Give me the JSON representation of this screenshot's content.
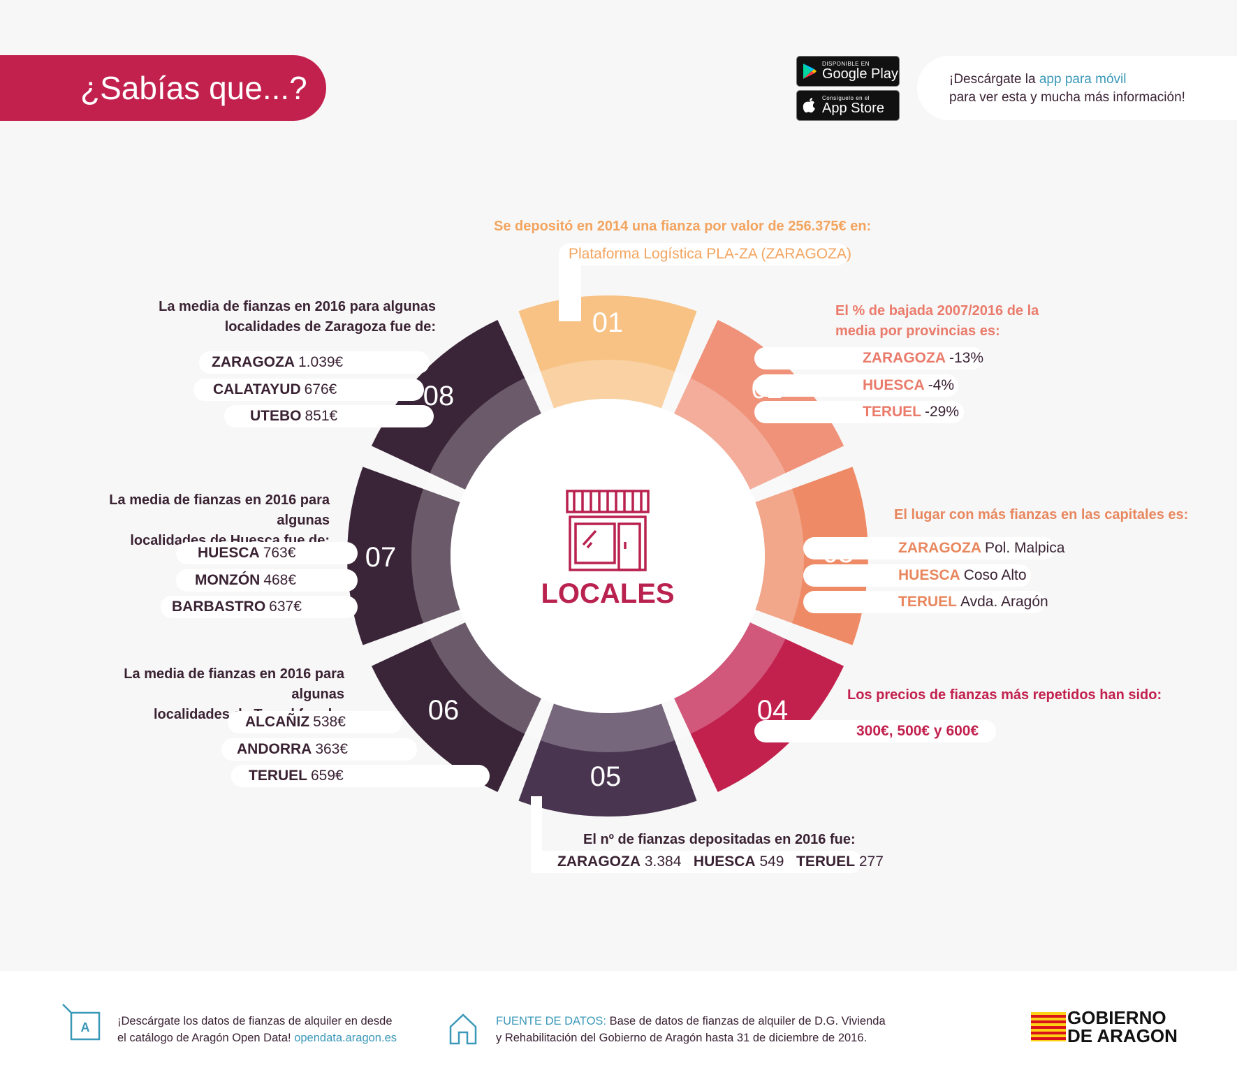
{
  "header": {
    "title": "¿Sabías que...?"
  },
  "stores": {
    "google": {
      "small": "DISPONIBLE EN",
      "name": "Google Play"
    },
    "apple": {
      "small": "Consíguelo en el",
      "name": "App Store"
    }
  },
  "app_promo": {
    "prefix": "¡Descárgate la ",
    "link": "app para móvil",
    "line2": "para ver esta y mucha más información!"
  },
  "center": {
    "label": "LOCALES",
    "icon": "shop-icon"
  },
  "colors": {
    "s01": "#f7c283",
    "s02": "#ef9279",
    "s03": "#ee8a65",
    "s04": "#c2214e",
    "s05": "#4a3551",
    "s06": "#3a2438",
    "s07": "#3a2438",
    "s08": "#3a2438",
    "brand": "#c2214e",
    "link": "#3a98b8"
  },
  "segments": {
    "s01": {
      "num": "01",
      "head": "Se depositó en 2014 una fianza por valor de 256.375€ en:",
      "value": "Plataforma Logística PLA-ZA (ZARAGOZA)"
    },
    "s02": {
      "num": "02",
      "head1": "El % de bajada 2007/2016 de la",
      "head2": "media por provincias es:",
      "rows": [
        {
          "place": "ZARAGOZA",
          "value": "-13%"
        },
        {
          "place": "HUESCA",
          "value": "-4%"
        },
        {
          "place": "TERUEL",
          "value": "-29%"
        }
      ]
    },
    "s03": {
      "num": "03",
      "head": "El lugar con más fianzas en las capitales es:",
      "rows": [
        {
          "place": "ZARAGOZA",
          "value": "Pol. Malpica"
        },
        {
          "place": "HUESCA",
          "value": "Coso Alto"
        },
        {
          "place": "TERUEL",
          "value": "Avda. Aragón"
        }
      ]
    },
    "s04": {
      "num": "04",
      "head": "Los precios de fianzas más repetidos han sido:",
      "value": "300€, 500€ y 600€"
    },
    "s05": {
      "num": "05",
      "head": "El nº de fianzas depositadas en 2016 fue:",
      "rows": [
        {
          "place": "ZARAGOZA",
          "value": "3.384"
        },
        {
          "place": "HUESCA",
          "value": "549"
        },
        {
          "place": "TERUEL",
          "value": "277"
        }
      ]
    },
    "s06": {
      "num": "06",
      "head1": "La media de fianzas en 2016 para algunas",
      "head2": "localidades de Teruel fue de:",
      "rows": [
        {
          "place": "ALCAÑIZ",
          "value": "538€"
        },
        {
          "place": "ANDORRA",
          "value": "363€"
        },
        {
          "place": "TERUEL",
          "value": "659€"
        }
      ]
    },
    "s07": {
      "num": "07",
      "head1": "La media de fianzas en 2016 para algunas",
      "head2": "localidades de Huesca fue de:",
      "rows": [
        {
          "place": "HUESCA",
          "value": "763€"
        },
        {
          "place": "MONZÓN",
          "value": "468€"
        },
        {
          "place": "BARBASTRO",
          "value": "637€"
        }
      ]
    },
    "s08": {
      "num": "08",
      "head1": "La media de fianzas en 2016 para algunas",
      "head2": "localidades de Zaragoza fue de:",
      "rows": [
        {
          "place": "ZARAGOZA",
          "value": "1.039€"
        },
        {
          "place": "CALATAYUD",
          "value": "676€"
        },
        {
          "place": "UTEBO",
          "value": "851€"
        }
      ]
    }
  },
  "footer": {
    "download_line1": "¡Descárgate los datos de fianzas de alquiler en desde",
    "download_line2": "el catálogo de Aragón Open Data!",
    "download_link": "opendata.aragon.es",
    "source_label": "FUENTE DE DATOS:",
    "source_line1": " Base de datos de fianzas de alquiler de D.G. Vivienda",
    "source_line2": "y Rehabilitación del Gobierno de Aragón hasta 31 de diciembre de 2016.",
    "logo_line1": "GOBIERNO",
    "logo_line2": "DE ARAGON"
  }
}
